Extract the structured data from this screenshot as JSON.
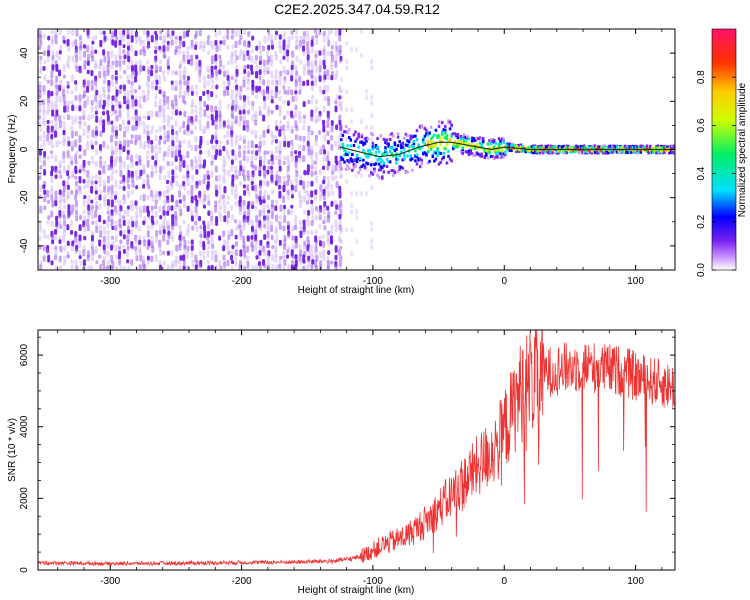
{
  "title": "C2E2.2025.347.04.59.R12",
  "colors": {
    "snr_line": "#ee3333",
    "track": "#0d3d22",
    "scatter_base": "#7a22ee"
  },
  "chart_data": [
    {
      "type": "heatmap",
      "xlabel": "Height of straight line (km)",
      "ylabel": "Frequency (Hz)",
      "xlim": [
        -355,
        130
      ],
      "ylim": [
        -50,
        50
      ],
      "xticks": [
        -300,
        -200,
        -100,
        0,
        100
      ],
      "xtick_labels": [
        "-300",
        "-200",
        "-100",
        "0",
        "100"
      ],
      "yticks": [
        -40,
        -20,
        0,
        20,
        40
      ],
      "ytick_labels": [
        "-40",
        "-20",
        "0",
        "20",
        "40"
      ],
      "noise_region_km": [
        -355,
        -125
      ],
      "signal_region_km": [
        -125,
        130
      ],
      "signal_track": {
        "x": [
          -125,
          -110,
          -95,
          -80,
          -65,
          -50,
          -40,
          -30,
          -20,
          -10,
          0,
          20,
          50,
          80,
          100,
          130
        ],
        "freq_hz": [
          1,
          -1,
          -3,
          -2,
          1,
          3,
          3,
          2,
          1,
          0,
          1,
          0,
          0,
          0,
          0,
          0
        ]
      },
      "colorbar": {
        "label": "Normalized spectral amplitude",
        "range": [
          0,
          1
        ],
        "ticks": [
          0.0,
          0.2,
          0.4,
          0.6,
          0.8
        ],
        "tick_labels": [
          "0.0",
          "0.2",
          "0.4",
          "0.6",
          "0.8"
        ],
        "stops": [
          "#ffffff",
          "#cc99ff",
          "#7a22ee",
          "#0000ff",
          "#00e0ff",
          "#00ee66",
          "#ccff00",
          "#ffcc00",
          "#ff3300",
          "#ff1166"
        ]
      }
    },
    {
      "type": "line",
      "xlabel": "Height of straight line (km)",
      "ylabel": "SNR (10 * v/v)",
      "xlim": [
        -355,
        130
      ],
      "ylim": [
        0,
        6700
      ],
      "xticks": [
        -300,
        -200,
        -100,
        0,
        100
      ],
      "xtick_labels": [
        "-300",
        "-200",
        "-100",
        "0",
        "100"
      ],
      "yticks": [
        0,
        2000,
        4000,
        6000
      ],
      "ytick_labels": [
        "0",
        "2000",
        "4000",
        "6000"
      ],
      "series": [
        {
          "name": "SNR",
          "x": [
            -355,
            -300,
            -250,
            -200,
            -160,
            -130,
            -115,
            -105,
            -95,
            -85,
            -75,
            -65,
            -55,
            -45,
            -35,
            -25,
            -15,
            -5,
            0,
            5,
            10,
            15,
            20,
            30,
            40,
            50,
            60,
            70,
            80,
            90,
            100,
            110,
            120,
            130
          ],
          "y": [
            200,
            180,
            190,
            210,
            220,
            250,
            320,
            450,
            650,
            800,
            950,
            1200,
            1500,
            1900,
            2300,
            2700,
            3100,
            3500,
            3900,
            4300,
            4800,
            5100,
            5300,
            5500,
            5600,
            5650,
            5700,
            5650,
            5600,
            5550,
            5400,
            5300,
            5200,
            5100
          ]
        }
      ]
    }
  ]
}
